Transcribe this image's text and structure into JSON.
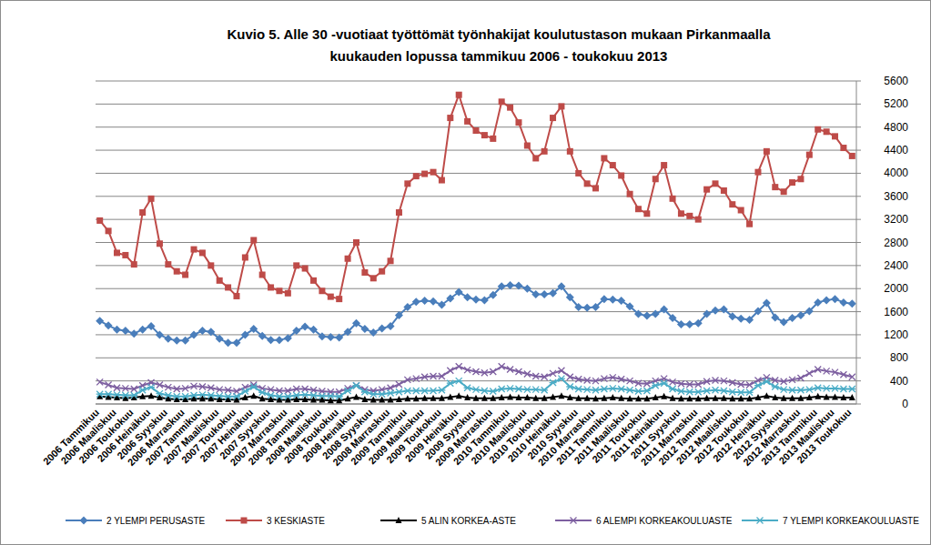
{
  "chart_data": {
    "type": "line",
    "title": "Kuvio 5. Alle 30 -vuotiaat työttömät työnhakijat koulutustason mukaan Pirkanmaalla\nkuukauden lopussa tammikuu 2006 - toukokuu 2013",
    "categories": [
      "2006 Tammikuu",
      null,
      "2006 Maaliskuu",
      null,
      "2006 Toukokuu",
      null,
      "2006 Heinäkuu",
      null,
      "2006 Syyskuu",
      null,
      "2006 Marraskuu",
      null,
      "2007 Tammikuu",
      null,
      "2007 Maaliskuu",
      null,
      "2007 Toukokuu",
      null,
      "2007 Heinäkuu",
      null,
      "2007 Syyskuu",
      null,
      "2007 Marraskuu",
      null,
      "2008 Tammikuu",
      null,
      "2008 Maaliskuu",
      null,
      "2008 Toukokuu",
      null,
      "2008 Heinäkuu",
      null,
      "2008 Syyskuu",
      null,
      "2008 Marraskuu",
      null,
      "2009 Tammikuu",
      null,
      "2009 Maaliskuu",
      null,
      "2009 Toukokuu",
      null,
      "2009 Heinäkuu",
      null,
      "2009 Syyskuu",
      null,
      "2009 Marraskuu",
      null,
      "2010 Tammikuu",
      null,
      "2010 Maaliskuu",
      null,
      "2010 Toukokuu",
      null,
      "2010 Heinäkuu",
      null,
      "2010 Syyskuu",
      null,
      "2010 Marraskuu",
      null,
      "2011 Tammikuu",
      null,
      "2011 Maaliskuu",
      null,
      "2011 Toukokuu",
      null,
      "2011 Heinäkuu",
      null,
      "2011 Syyskuu",
      null,
      "2011 Marraskuu",
      null,
      "2012 Tammikuu",
      null,
      "2012 Maaliskuu",
      null,
      "2012 Toukokuu",
      null,
      "2012 Heinäkuu",
      null,
      "2012 Syyskuu",
      null,
      "2012 Marraskuu",
      null,
      "2013 Tammikuu",
      null,
      "2013 Maaliskuu",
      null,
      "2013 Toukokuu"
    ],
    "series": [
      {
        "name": "2 YLEMPI PERUSASTE",
        "color": "#4a7ebb",
        "marker": "diamond",
        "values": [
          1440,
          1360,
          1290,
          1270,
          1220,
          1290,
          1350,
          1200,
          1130,
          1100,
          1100,
          1200,
          1270,
          1250,
          1130,
          1060,
          1060,
          1200,
          1300,
          1180,
          1110,
          1110,
          1140,
          1270,
          1340,
          1290,
          1170,
          1160,
          1150,
          1250,
          1400,
          1300,
          1240,
          1310,
          1350,
          1540,
          1680,
          1770,
          1790,
          1780,
          1720,
          1830,
          1940,
          1850,
          1810,
          1800,
          1890,
          2040,
          2060,
          2050,
          2000,
          1900,
          1900,
          1920,
          2040,
          1850,
          1680,
          1670,
          1680,
          1820,
          1810,
          1790,
          1690,
          1560,
          1530,
          1560,
          1640,
          1490,
          1380,
          1380,
          1400,
          1560,
          1620,
          1640,
          1520,
          1480,
          1460,
          1610,
          1750,
          1500,
          1420,
          1490,
          1540,
          1610,
          1760,
          1800,
          1820,
          1760,
          1740
        ]
      },
      {
        "name": "3 KESKIASTE",
        "color": "#be4b48",
        "marker": "square",
        "values": [
          3180,
          3000,
          2620,
          2580,
          2420,
          3320,
          3560,
          2780,
          2420,
          2300,
          2240,
          2680,
          2620,
          2400,
          2140,
          2020,
          1870,
          2540,
          2840,
          2240,
          2020,
          1960,
          1920,
          2400,
          2350,
          2140,
          1960,
          1860,
          1820,
          2520,
          2800,
          2280,
          2180,
          2300,
          2480,
          3320,
          3820,
          3950,
          3990,
          4020,
          3880,
          4960,
          5360,
          4900,
          4740,
          4660,
          4600,
          5240,
          5140,
          4880,
          4480,
          4260,
          4380,
          4960,
          5160,
          4380,
          4000,
          3820,
          3740,
          4260,
          4140,
          3960,
          3640,
          3380,
          3300,
          3900,
          4140,
          3560,
          3300,
          3260,
          3200,
          3720,
          3820,
          3700,
          3460,
          3360,
          3120,
          4020,
          4380,
          3760,
          3680,
          3840,
          3900,
          4320,
          4760,
          4720,
          4640,
          4440,
          4300
        ]
      },
      {
        "name": "5 ALIN KORKEA-ASTE",
        "color": "#000000",
        "marker": "triangle",
        "values": [
          130,
          120,
          110,
          100,
          110,
          130,
          140,
          110,
          90,
          80,
          80,
          90,
          90,
          90,
          80,
          80,
          70,
          110,
          140,
          90,
          80,
          70,
          70,
          80,
          80,
          70,
          70,
          60,
          60,
          90,
          120,
          80,
          70,
          70,
          70,
          80,
          90,
          90,
          100,
          100,
          100,
          120,
          140,
          110,
          100,
          100,
          100,
          110,
          120,
          110,
          110,
          100,
          100,
          120,
          140,
          110,
          100,
          100,
          90,
          100,
          110,
          100,
          90,
          90,
          90,
          110,
          130,
          100,
          90,
          90,
          90,
          100,
          100,
          100,
          90,
          90,
          90,
          110,
          140,
          110,
          100,
          100,
          100,
          110,
          130,
          120,
          120,
          110,
          110
        ]
      },
      {
        "name": "6 ALEMPI KORKEAKOULUASTE",
        "color": "#7d5fa0",
        "marker": "x",
        "values": [
          380,
          330,
          280,
          270,
          260,
          320,
          370,
          330,
          290,
          260,
          270,
          310,
          300,
          280,
          250,
          240,
          220,
          290,
          330,
          270,
          250,
          230,
          230,
          260,
          260,
          240,
          220,
          210,
          210,
          270,
          320,
          250,
          230,
          250,
          280,
          340,
          420,
          440,
          470,
          480,
          480,
          580,
          650,
          590,
          560,
          540,
          560,
          650,
          600,
          560,
          520,
          480,
          470,
          530,
          580,
          470,
          430,
          410,
          400,
          440,
          460,
          430,
          400,
          360,
          350,
          400,
          440,
          380,
          350,
          340,
          340,
          390,
          410,
          400,
          370,
          340,
          330,
          410,
          460,
          410,
          390,
          420,
          450,
          530,
          600,
          570,
          550,
          510,
          470
        ]
      },
      {
        "name": "7 YLEMPI KORKEAKOULUASTE",
        "color": "#4bacc6",
        "marker": "star",
        "values": [
          170,
          170,
          160,
          150,
          150,
          240,
          290,
          180,
          150,
          130,
          130,
          150,
          160,
          150,
          140,
          130,
          130,
          220,
          300,
          200,
          150,
          130,
          130,
          150,
          160,
          150,
          140,
          140,
          130,
          230,
          320,
          210,
          170,
          170,
          190,
          210,
          230,
          230,
          230,
          230,
          240,
          360,
          400,
          280,
          250,
          230,
          220,
          260,
          270,
          260,
          250,
          250,
          240,
          370,
          440,
          300,
          260,
          250,
          240,
          260,
          270,
          260,
          240,
          220,
          230,
          320,
          360,
          260,
          220,
          210,
          210,
          230,
          240,
          230,
          210,
          200,
          200,
          320,
          390,
          300,
          250,
          240,
          240,
          250,
          280,
          270,
          270,
          260,
          260
        ]
      }
    ],
    "ylim": [
      0,
      5600
    ],
    "yticks": [
      0,
      400,
      800,
      1200,
      1600,
      2000,
      2400,
      2800,
      3200,
      3600,
      4000,
      4400,
      4800,
      5200,
      5600
    ],
    "grid": true,
    "legend": "bottom"
  }
}
